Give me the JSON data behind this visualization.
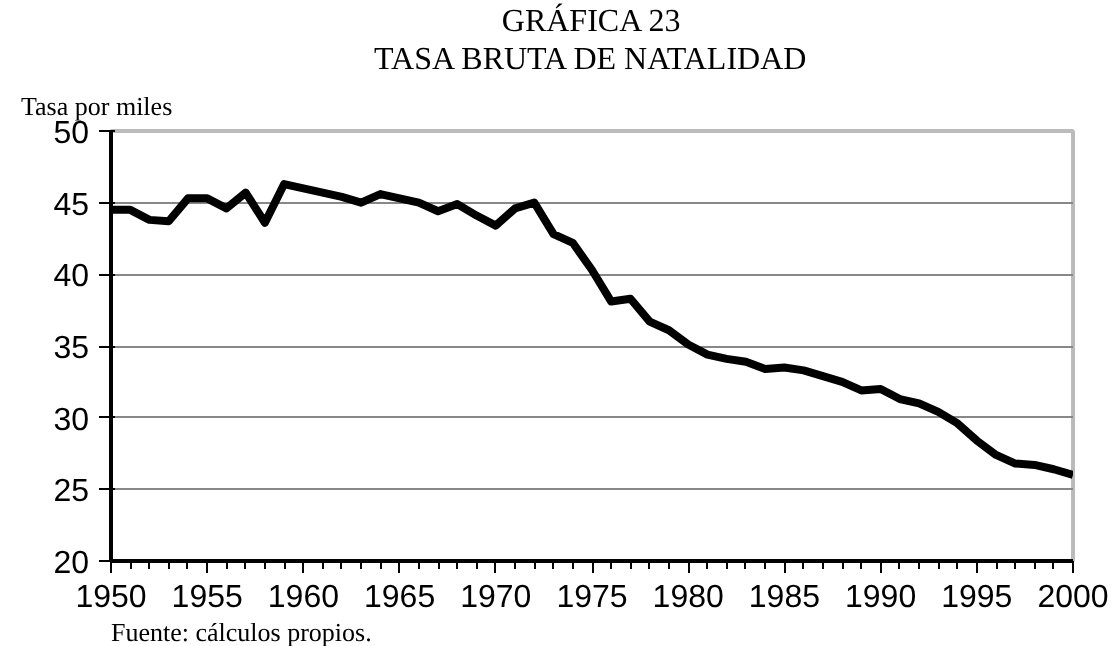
{
  "chart_data": {
    "type": "line",
    "title": "GRÁFICA 23",
    "subtitle": "TASA BRUTA DE NATALIDAD",
    "ylabel": "Tasa por miles",
    "annotations": [
      "Fuente: cálculos propios."
    ],
    "x": [
      1950,
      1951,
      1952,
      1953,
      1954,
      1955,
      1956,
      1957,
      1958,
      1959,
      1960,
      1961,
      1962,
      1963,
      1964,
      1965,
      1966,
      1967,
      1968,
      1969,
      1970,
      1971,
      1972,
      1973,
      1974,
      1975,
      1976,
      1977,
      1978,
      1979,
      1980,
      1981,
      1982,
      1983,
      1984,
      1985,
      1986,
      1987,
      1988,
      1989,
      1990,
      1991,
      1992,
      1993,
      1994,
      1995,
      1996,
      1997,
      1998,
      1999,
      2000
    ],
    "series": [
      {
        "color": "#000000",
        "values": [
          44.5,
          44.5,
          43.8,
          43.7,
          45.3,
          45.3,
          44.6,
          45.7,
          43.6,
          46.3,
          46.0,
          45.7,
          45.4,
          45.0,
          45.6,
          45.3,
          45.0,
          44.4,
          44.9,
          44.1,
          43.4,
          44.6,
          45.0,
          42.8,
          42.2,
          40.3,
          38.1,
          38.3,
          36.7,
          36.1,
          35.1,
          34.4,
          34.1,
          33.9,
          33.4,
          33.5,
          33.3,
          32.9,
          32.5,
          31.9,
          32.0,
          31.3,
          31.0,
          30.4,
          29.6,
          28.4,
          27.4,
          26.8,
          26.7,
          26.4,
          26.0
        ]
      }
    ],
    "xlim": [
      1950,
      2000
    ],
    "xticks": [
      1950,
      1955,
      1960,
      1965,
      1970,
      1975,
      1980,
      1985,
      1990,
      1995,
      2000
    ],
    "ylim": [
      20,
      50
    ],
    "yticks": [
      20,
      25,
      30,
      35,
      40,
      45,
      50
    ],
    "grid": "y",
    "marker": "none",
    "line_style": "solid"
  }
}
